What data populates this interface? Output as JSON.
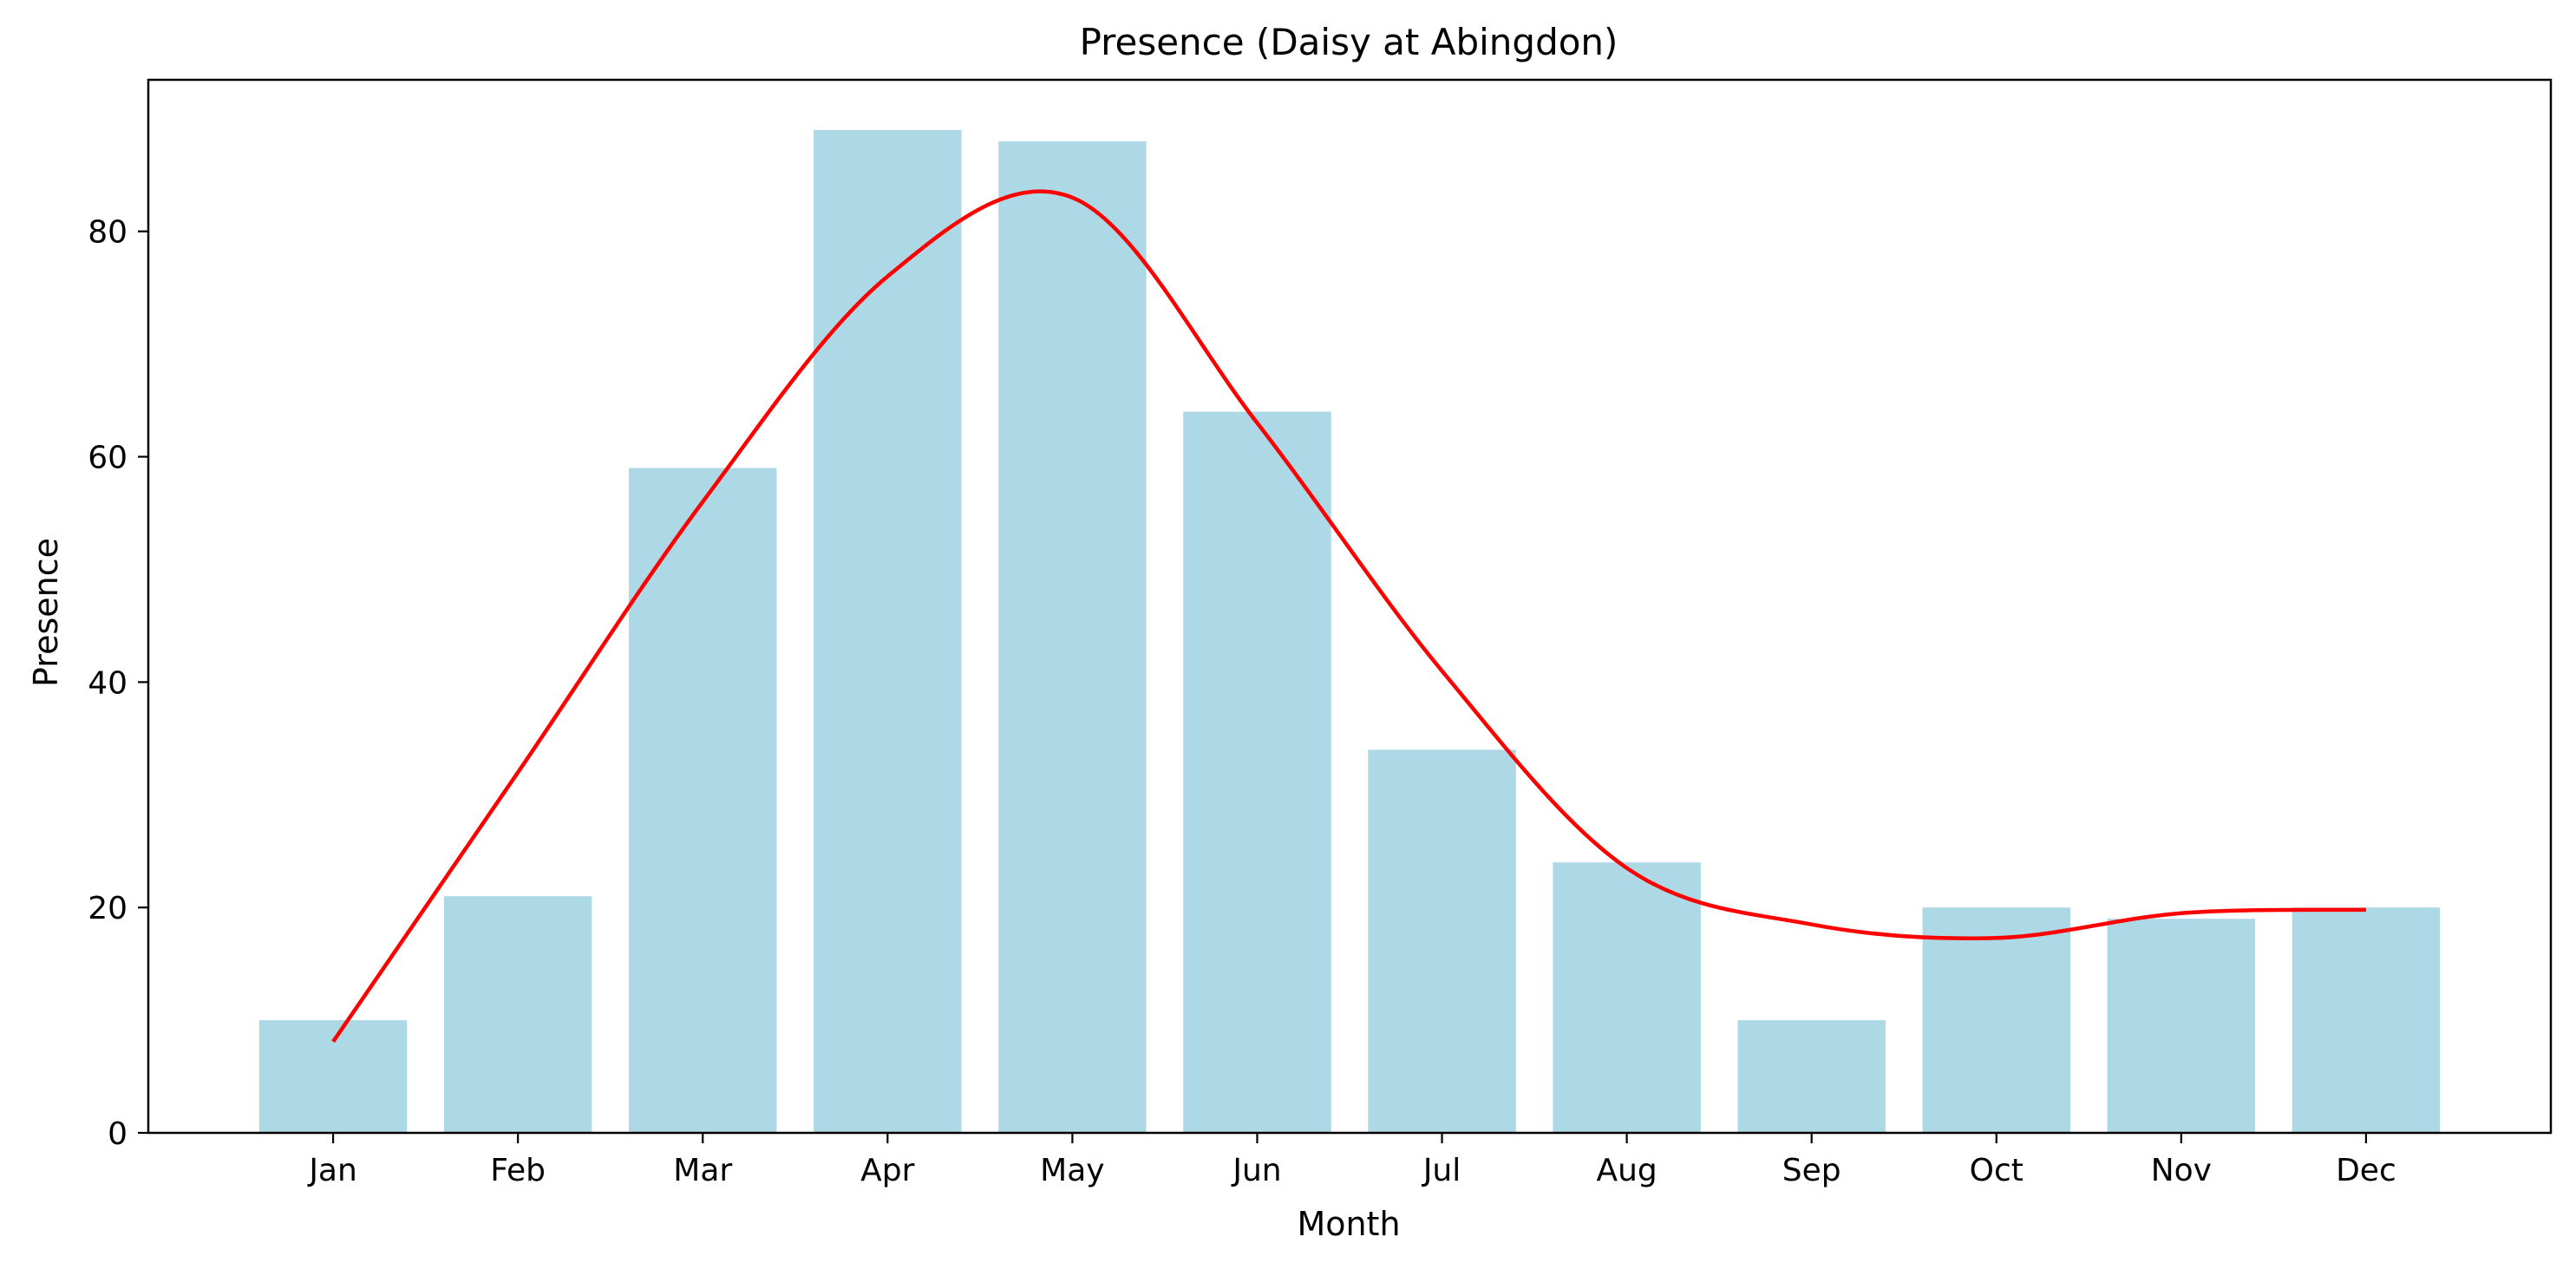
{
  "chart_data": {
    "type": "bar",
    "title": "Presence (Daisy at Abingdon)",
    "xlabel": "Month",
    "ylabel": "Presence",
    "categories": [
      "Jan",
      "Feb",
      "Mar",
      "Apr",
      "May",
      "Jun",
      "Jul",
      "Aug",
      "Sep",
      "Oct",
      "Nov",
      "Dec"
    ],
    "series": [
      {
        "type": "bar",
        "values": [
          10,
          21,
          59,
          89,
          88,
          64,
          34,
          24,
          10,
          20,
          19,
          20
        ],
        "color": "#add8e6"
      },
      {
        "type": "line",
        "smooth": true,
        "values": [
          8.1,
          32.0,
          56.0,
          76.0,
          83.0,
          63.0,
          41.0,
          23.5,
          18.5,
          17.3,
          19.5,
          19.8
        ],
        "color": "#ff0000"
      }
    ],
    "ylim": [
      0,
      93.45
    ],
    "yticks": [
      0,
      20,
      40,
      60,
      80
    ],
    "grid": false,
    "legend": "none"
  }
}
